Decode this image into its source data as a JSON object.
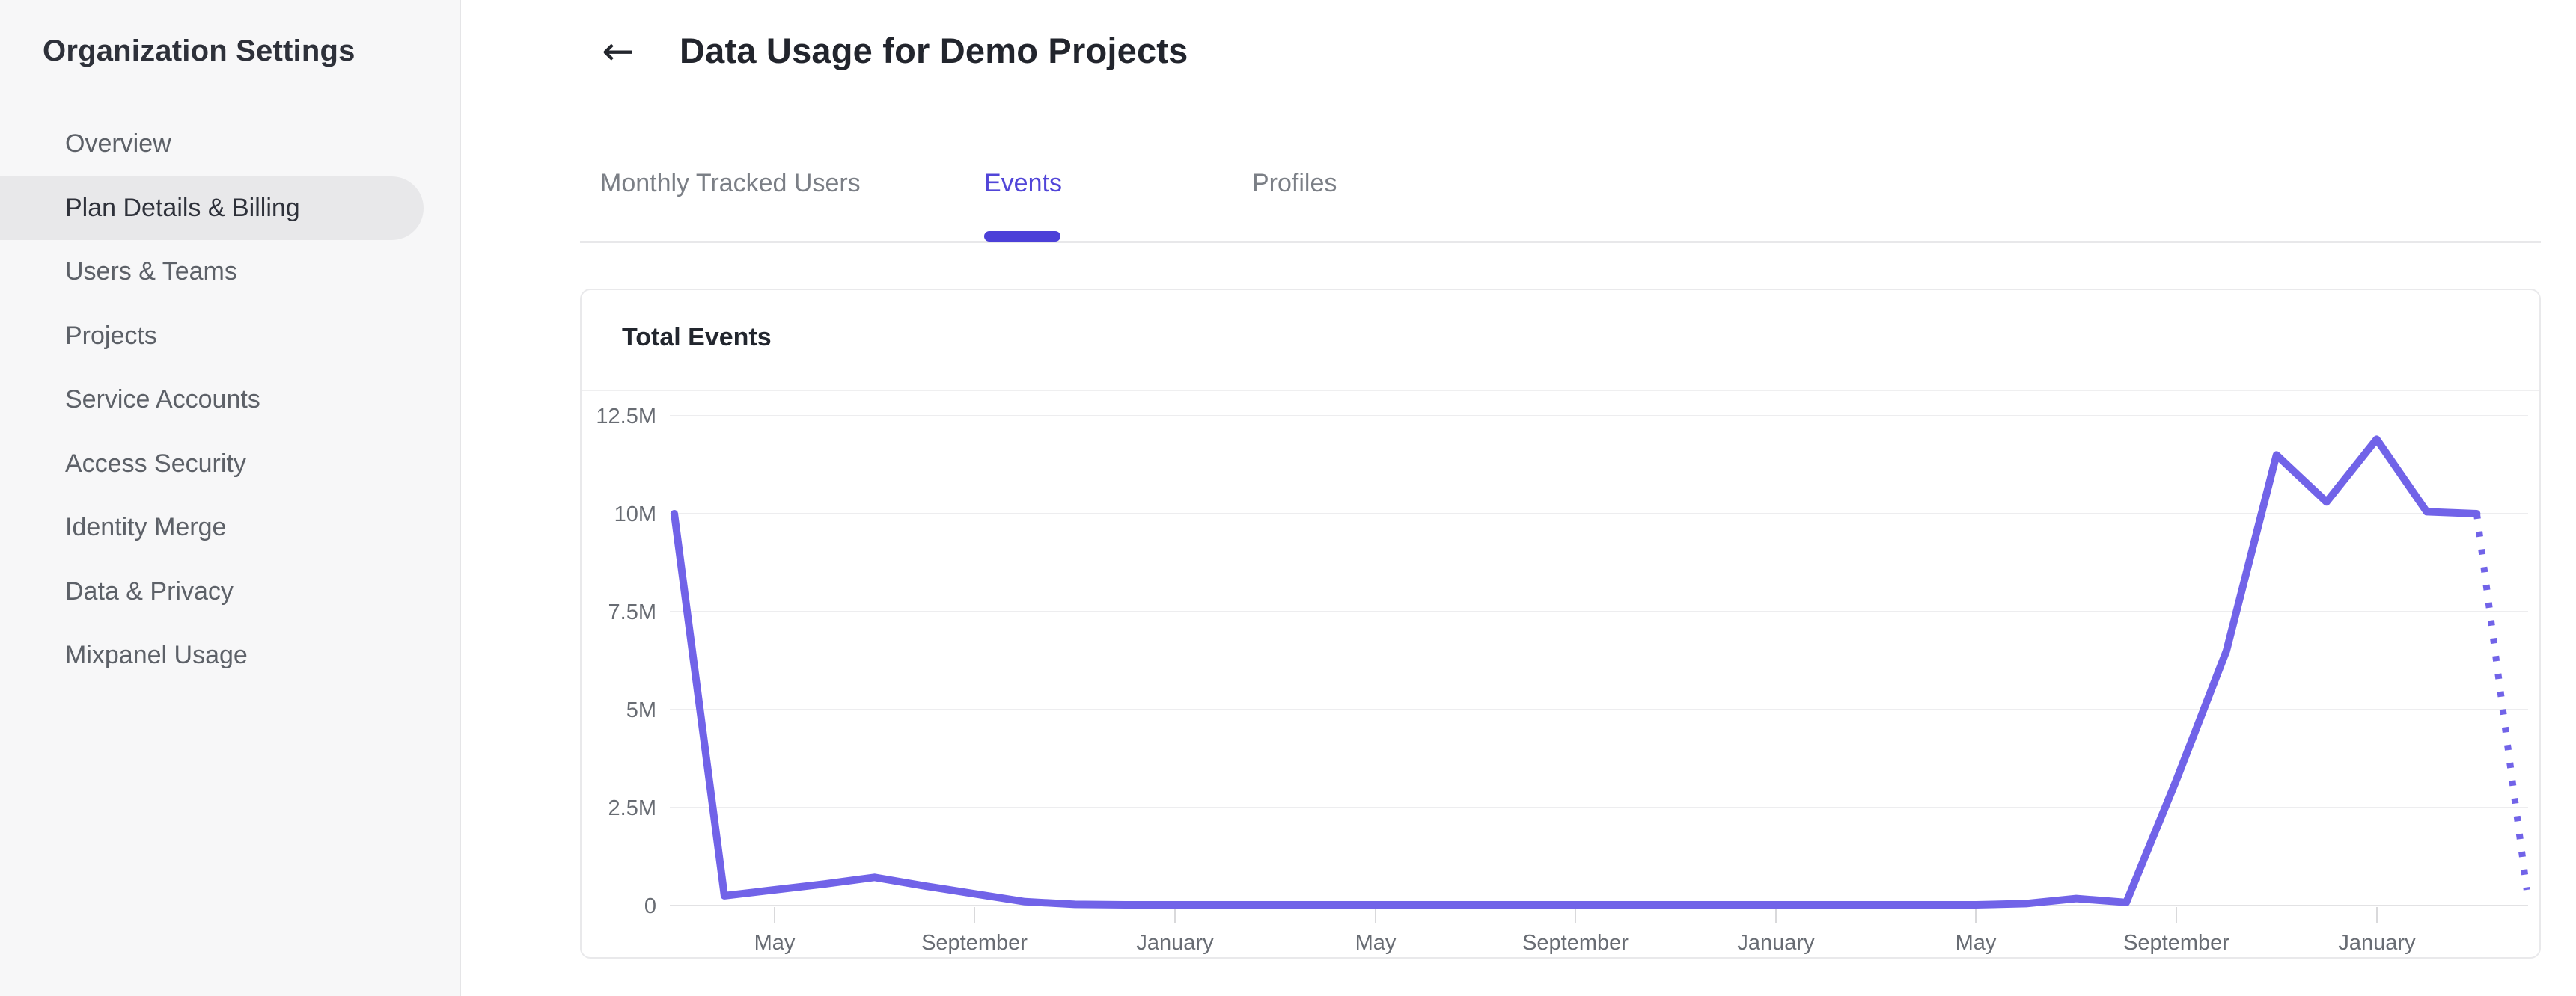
{
  "sidebar": {
    "title": "Organization Settings",
    "items": [
      {
        "label": "Overview",
        "selected": false
      },
      {
        "label": "Plan Details & Billing",
        "selected": true
      },
      {
        "label": "Users & Teams",
        "selected": false
      },
      {
        "label": "Projects",
        "selected": false
      },
      {
        "label": "Service Accounts",
        "selected": false
      },
      {
        "label": "Access Security",
        "selected": false
      },
      {
        "label": "Identity Merge",
        "selected": false
      },
      {
        "label": "Data & Privacy",
        "selected": false
      },
      {
        "label": "Mixpanel Usage",
        "selected": false
      }
    ]
  },
  "header": {
    "back_icon": "←",
    "title": "Data Usage for Demo Projects"
  },
  "tabs": [
    {
      "label": "Monthly Tracked Users",
      "active": false
    },
    {
      "label": "Events",
      "active": true
    },
    {
      "label": "Profiles",
      "active": false
    }
  ],
  "card": {
    "title": "Total Events"
  },
  "colors": {
    "accent": "#5145d8",
    "tab_indicator": "#4c40d8",
    "chart_line": "#7163e8",
    "sidebar_bg": "#f7f7f8",
    "selected_pill": "#e8e8ea",
    "gridline": "#ededef"
  },
  "chart_data": {
    "type": "line",
    "title": "Total Events",
    "xlabel": "",
    "ylabel": "",
    "ylim": [
      0,
      12500000
    ],
    "grid": "horizontal",
    "legend": "none",
    "y_ticks": [
      "0",
      "2.5M",
      "5M",
      "7.5M",
      "10M",
      "12.5M"
    ],
    "x_tick_labels": [
      "May",
      "September",
      "January",
      "May",
      "September",
      "January",
      "May",
      "September",
      "January"
    ],
    "x_tick_indices": [
      2,
      6,
      10,
      14,
      18,
      22,
      26,
      30,
      34
    ],
    "x_unit": "month (one data point per month, 38 consecutive months)",
    "series": [
      {
        "name": "Total Events",
        "values_millions": [
          10,
          0.25,
          0.4,
          0.55,
          0.72,
          0.5,
          0.3,
          0.1,
          0.03,
          0.02,
          0.02,
          0.02,
          0.02,
          0.02,
          0.02,
          0.02,
          0.02,
          0.02,
          0.02,
          0.02,
          0.02,
          0.02,
          0.02,
          0.02,
          0.02,
          0.02,
          0.02,
          0.05,
          0.18,
          0.08,
          3.2,
          6.5,
          11.5,
          10.3,
          11.9,
          10.05,
          10,
          0.4
        ],
        "final_segment_style": "dotted (projected/incomplete month)"
      }
    ]
  }
}
